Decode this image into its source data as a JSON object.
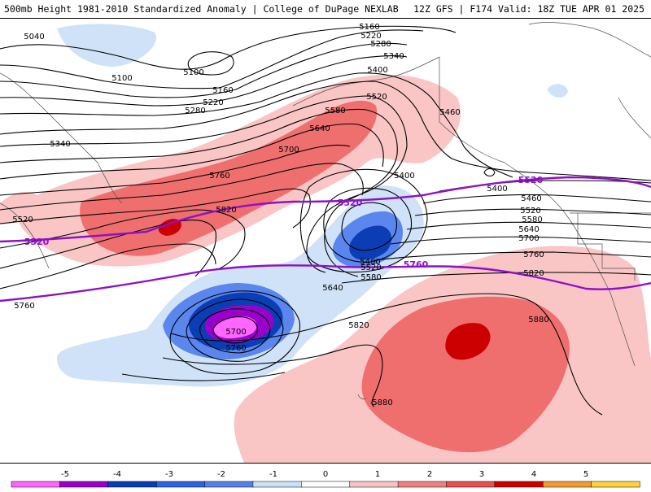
{
  "header": {
    "title": "500mb Height 1981-2010 Standardized Anomaly | College of DuPage NEXLAB",
    "run_info": "12Z GFS | F174 Valid: 18Z TUE APR 01 2025"
  },
  "colorbar": {
    "ticks": [
      "-5",
      "-4",
      "-3",
      "-2",
      "-1",
      "0",
      "1",
      "2",
      "3",
      "4",
      "5"
    ],
    "colors": [
      "#ff66ff",
      "#9900cc",
      "#0a3cb4",
      "#2e62e0",
      "#5580e8",
      "#cce0fa",
      "#ffffff",
      "#f7c3c3",
      "#f08080",
      "#e85050",
      "#cc0000",
      "#f59a30",
      "#ffd040"
    ]
  },
  "anomaly_fills": {
    "positive_colors": [
      "#f9c5c5",
      "#ef6f6f",
      "#cc0000"
    ],
    "negative_colors": [
      "#cfe2f7",
      "#5a86ee",
      "#0b3db4",
      "#9a00cc",
      "#ff66ff"
    ]
  },
  "contour_labels": [
    {
      "id": "5040",
      "text": "5040"
    },
    {
      "id": "5100",
      "text": "5100"
    },
    {
      "id": "5100b",
      "text": "5100"
    },
    {
      "id": "5160a",
      "text": "5160"
    },
    {
      "id": "5160b",
      "text": "5160"
    },
    {
      "id": "5220a",
      "text": "5220"
    },
    {
      "id": "5220b",
      "text": "5220"
    },
    {
      "id": "5280a",
      "text": "5280"
    },
    {
      "id": "5280b",
      "text": "5280"
    },
    {
      "id": "5340a",
      "text": "5340"
    },
    {
      "id": "5340b",
      "text": "5340"
    },
    {
      "id": "5400a",
      "text": "5400"
    },
    {
      "id": "5400b",
      "text": "5400"
    },
    {
      "id": "5400c",
      "text": "5400"
    },
    {
      "id": "5460a",
      "text": "5460"
    },
    {
      "id": "5460b",
      "text": "5460"
    },
    {
      "id": "5460c",
      "text": "5460"
    },
    {
      "id": "5520a",
      "text": "5520"
    },
    {
      "id": "5520b",
      "text": "5520"
    },
    {
      "id": "5520c",
      "text": "5520"
    },
    {
      "id": "5520d",
      "text": "5520"
    },
    {
      "id": "5580a",
      "text": "5580"
    },
    {
      "id": "5580b",
      "text": "5580"
    },
    {
      "id": "5580c",
      "text": "5580"
    },
    {
      "id": "5640a",
      "text": "5640"
    },
    {
      "id": "5640b",
      "text": "5640"
    },
    {
      "id": "5640c",
      "text": "5640"
    },
    {
      "id": "5700a",
      "text": "5700"
    },
    {
      "id": "5700b",
      "text": "5700"
    },
    {
      "id": "5700c",
      "text": "5700"
    },
    {
      "id": "5760a",
      "text": "5760"
    },
    {
      "id": "5760b",
      "text": "5760"
    },
    {
      "id": "5760c",
      "text": "5760"
    },
    {
      "id": "5760d",
      "text": "5760"
    },
    {
      "id": "5820a",
      "text": "5820"
    },
    {
      "id": "5820b",
      "text": "5820"
    },
    {
      "id": "5820c",
      "text": "5820"
    },
    {
      "id": "5880a",
      "text": "5880"
    },
    {
      "id": "5880b",
      "text": "5880"
    }
  ],
  "climo_labels": [
    {
      "id": "p5520a",
      "text": "5520"
    },
    {
      "id": "p5520b",
      "text": "5520"
    },
    {
      "id": "p5520c",
      "text": "5520"
    },
    {
      "id": "p5760a",
      "text": "5760"
    }
  ]
}
